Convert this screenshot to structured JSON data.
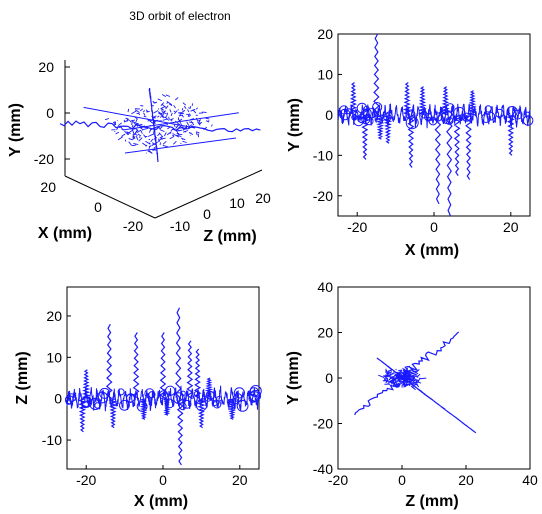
{
  "figure": {
    "line_color": "#1a1aff",
    "axis_color": "#000000",
    "background": "#ffffff"
  },
  "chart_data": [
    {
      "id": "p3d",
      "type": "line",
      "projection": "3d",
      "title": "3D orbit of electron",
      "xlabel": "X (mm)",
      "ylabel": "Y (mm)",
      "zlabel": "Z (mm)",
      "x_ticks": [
        "20",
        "0",
        "-20"
      ],
      "y_ticks": [
        "20",
        "0",
        "-20"
      ],
      "z_ticks": [
        "-10",
        "0",
        "10",
        "20"
      ],
      "grid": false,
      "note_series": "electron trajectory (no legend shown)",
      "series": [
        {
          "values_xz": [
            [
              20,
              20
            ],
            [
              0,
              0
            ],
            [
              -20,
              -20
            ]
          ],
          "kind": "arm"
        },
        {
          "values_xz": [
            [
              -18,
              15
            ],
            [
              0,
              0
            ],
            [
              18,
              -15
            ]
          ],
          "kind": "arm"
        }
      ]
    },
    {
      "id": "pxy",
      "type": "line",
      "title": "",
      "xlabel": "X (mm)",
      "ylabel": "Y (mm)",
      "xlim": [
        -25,
        25
      ],
      "ylim": [
        -25,
        20
      ],
      "x_ticks": [
        -20,
        0,
        20
      ],
      "y_ticks": [
        -20,
        -10,
        0,
        10,
        20
      ],
      "grid": false,
      "spikes": [
        {
          "x": -15,
          "y0": 0,
          "y1": 20
        },
        {
          "x": -14,
          "y0": 0,
          "y1": -6
        },
        {
          "x": -21,
          "y0": 0,
          "y1": 8
        },
        {
          "x": -18,
          "y0": 0,
          "y1": -11
        },
        {
          "x": -12,
          "y0": 0,
          "y1": -7
        },
        {
          "x": -7,
          "y0": 0,
          "y1": 8
        },
        {
          "x": -6,
          "y0": 0,
          "y1": -13
        },
        {
          "x": -3,
          "y0": 0,
          "y1": 7
        },
        {
          "x": 1,
          "y0": 0,
          "y1": -22
        },
        {
          "x": 3,
          "y0": 0,
          "y1": 7
        },
        {
          "x": 4,
          "y0": 0,
          "y1": -25
        },
        {
          "x": 6,
          "y0": 0,
          "y1": -15
        },
        {
          "x": 9,
          "y0": 0,
          "y1": -16
        },
        {
          "x": 10,
          "y0": 0,
          "y1": 6
        },
        {
          "x": 20,
          "y0": 0,
          "y1": -10
        }
      ]
    },
    {
      "id": "pxz",
      "type": "line",
      "title": "",
      "xlabel": "X (mm)",
      "ylabel": "Z (mm)",
      "xlim": [
        -25,
        25
      ],
      "ylim": [
        -17,
        27
      ],
      "x_ticks": [
        -20,
        0,
        20
      ],
      "y_ticks": [
        -10,
        0,
        10,
        20
      ],
      "grid": false,
      "spikes": [
        {
          "x": -20,
          "y0": 0,
          "y1": 7
        },
        {
          "x": -21,
          "y0": 0,
          "y1": -8
        },
        {
          "x": -14,
          "y0": 0,
          "y1": 18
        },
        {
          "x": -13,
          "y0": 0,
          "y1": -7
        },
        {
          "x": -7,
          "y0": 0,
          "y1": 16
        },
        {
          "x": -5,
          "y0": 0,
          "y1": -5
        },
        {
          "x": 0,
          "y0": 0,
          "y1": 16
        },
        {
          "x": 1,
          "y0": 0,
          "y1": -4
        },
        {
          "x": 4,
          "y0": 0,
          "y1": 22
        },
        {
          "x": 4.5,
          "y0": 0,
          "y1": -16
        },
        {
          "x": 7,
          "y0": 0,
          "y1": 14
        },
        {
          "x": 9,
          "y0": 0,
          "y1": 12
        },
        {
          "x": 10,
          "y0": 0,
          "y1": -7
        },
        {
          "x": 12,
          "y0": 0,
          "y1": 5
        },
        {
          "x": 18,
          "y0": 0,
          "y1": -5
        }
      ]
    },
    {
      "id": "pzy",
      "type": "line",
      "title": "",
      "xlabel": "Z (mm)",
      "ylabel": "Y (mm)",
      "xlim": [
        -20,
        40
      ],
      "ylim": [
        -40,
        40
      ],
      "x_ticks": [
        -20,
        0,
        20,
        40
      ],
      "y_ticks": [
        -40,
        -20,
        0,
        20,
        40
      ],
      "grid": false,
      "arms": [
        {
          "x0": -15,
          "y0": -16,
          "x1": 18,
          "y1": 20
        },
        {
          "x0": -8,
          "y0": 9,
          "x1": 23,
          "y1": -24
        }
      ]
    }
  ]
}
